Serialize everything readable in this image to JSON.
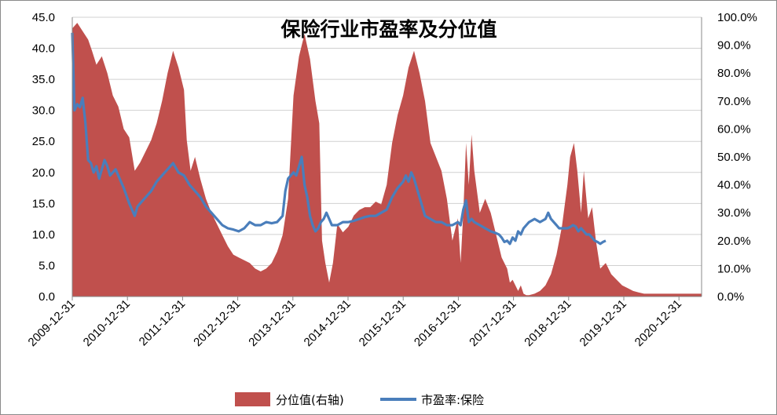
{
  "chart_data": {
    "type": "area",
    "title": "保险行业市盈率及分位值",
    "x_tick_labels": [
      "2009-12-31",
      "2010-12-31",
      "2011-12-31",
      "2012-12-31",
      "2013-12-31",
      "2014-12-31",
      "2015-12-31",
      "2016-12-31",
      "2017-12-31",
      "2018-12-31",
      "2019-12-31",
      "2020-12-31"
    ],
    "left_axis": {
      "range": [
        0,
        45
      ],
      "ticks": [
        "0.0",
        "5.0",
        "10.0",
        "15.0",
        "20.0",
        "25.0",
        "30.0",
        "35.0",
        "40.0",
        "45.0"
      ]
    },
    "right_axis": {
      "range": [
        0,
        100
      ],
      "ticks": [
        "0.0%",
        "10.0%",
        "20.0%",
        "30.0%",
        "40.0%",
        "50.0%",
        "60.0%",
        "70.0%",
        "80.0%",
        "90.0%",
        "100.0%"
      ]
    },
    "x_range": [
      2009.96,
      2021.45
    ],
    "legend_position": "bottom",
    "series": [
      {
        "name": "分位值(右轴)",
        "kind": "area",
        "axis": "right",
        "color": "#c0504d",
        "points": [
          [
            2009.96,
            96
          ],
          [
            2010.05,
            98
          ],
          [
            2010.15,
            95
          ],
          [
            2010.25,
            92
          ],
          [
            2010.32,
            88
          ],
          [
            2010.4,
            83
          ],
          [
            2010.5,
            86
          ],
          [
            2010.6,
            80
          ],
          [
            2010.7,
            72
          ],
          [
            2010.8,
            68
          ],
          [
            2010.9,
            60
          ],
          [
            2011.0,
            57
          ],
          [
            2011.1,
            45
          ],
          [
            2011.2,
            48
          ],
          [
            2011.3,
            52
          ],
          [
            2011.4,
            56
          ],
          [
            2011.5,
            62
          ],
          [
            2011.6,
            70
          ],
          [
            2011.7,
            80
          ],
          [
            2011.8,
            88
          ],
          [
            2011.9,
            82
          ],
          [
            2012.0,
            74
          ],
          [
            2012.05,
            56
          ],
          [
            2012.12,
            45
          ],
          [
            2012.2,
            50
          ],
          [
            2012.3,
            42
          ],
          [
            2012.4,
            35
          ],
          [
            2012.5,
            30
          ],
          [
            2012.6,
            26
          ],
          [
            2012.7,
            22
          ],
          [
            2012.8,
            18
          ],
          [
            2012.9,
            15
          ],
          [
            2013.0,
            14
          ],
          [
            2013.1,
            13
          ],
          [
            2013.2,
            12
          ],
          [
            2013.3,
            10
          ],
          [
            2013.4,
            9
          ],
          [
            2013.5,
            10
          ],
          [
            2013.6,
            12
          ],
          [
            2013.7,
            16
          ],
          [
            2013.8,
            22
          ],
          [
            2013.9,
            35
          ],
          [
            2014.0,
            72
          ],
          [
            2014.1,
            86
          ],
          [
            2014.2,
            94
          ],
          [
            2014.3,
            85
          ],
          [
            2014.4,
            70
          ],
          [
            2014.47,
            62
          ],
          [
            2014.52,
            20
          ],
          [
            2014.58,
            12
          ],
          [
            2014.65,
            5
          ],
          [
            2014.72,
            12
          ],
          [
            2014.8,
            26
          ],
          [
            2014.9,
            23
          ],
          [
            2015.0,
            25
          ],
          [
            2015.1,
            29
          ],
          [
            2015.2,
            31
          ],
          [
            2015.3,
            32
          ],
          [
            2015.4,
            32
          ],
          [
            2015.5,
            34
          ],
          [
            2015.6,
            33
          ],
          [
            2015.7,
            40
          ],
          [
            2015.8,
            55
          ],
          [
            2015.9,
            65
          ],
          [
            2016.0,
            72
          ],
          [
            2016.1,
            82
          ],
          [
            2016.2,
            88
          ],
          [
            2016.3,
            80
          ],
          [
            2016.4,
            70
          ],
          [
            2016.5,
            55
          ],
          [
            2016.6,
            50
          ],
          [
            2016.7,
            45
          ],
          [
            2016.8,
            35
          ],
          [
            2016.9,
            20
          ],
          [
            2017.0,
            28
          ],
          [
            2017.05,
            12
          ],
          [
            2017.1,
            30
          ],
          [
            2017.15,
            55
          ],
          [
            2017.2,
            40
          ],
          [
            2017.25,
            58
          ],
          [
            2017.3,
            45
          ],
          [
            2017.4,
            30
          ],
          [
            2017.5,
            35
          ],
          [
            2017.6,
            30
          ],
          [
            2017.7,
            22
          ],
          [
            2017.8,
            14
          ],
          [
            2017.9,
            10
          ],
          [
            2017.95,
            5
          ],
          [
            2018.0,
            6
          ],
          [
            2018.05,
            4
          ],
          [
            2018.1,
            2
          ],
          [
            2018.15,
            4
          ],
          [
            2018.2,
            1
          ],
          [
            2018.25,
            0.5
          ],
          [
            2018.3,
            0.5
          ],
          [
            2018.4,
            1
          ],
          [
            2018.5,
            2
          ],
          [
            2018.6,
            4
          ],
          [
            2018.7,
            8
          ],
          [
            2018.8,
            15
          ],
          [
            2018.9,
            25
          ],
          [
            2019.0,
            40
          ],
          [
            2019.05,
            50
          ],
          [
            2019.12,
            55
          ],
          [
            2019.18,
            45
          ],
          [
            2019.25,
            30
          ],
          [
            2019.3,
            45
          ],
          [
            2019.38,
            28
          ],
          [
            2019.45,
            32
          ],
          [
            2019.52,
            20
          ],
          [
            2019.6,
            10
          ],
          [
            2019.7,
            12
          ],
          [
            2019.8,
            8
          ],
          [
            2019.9,
            6
          ],
          [
            2020.0,
            4
          ],
          [
            2020.1,
            3
          ],
          [
            2020.2,
            2
          ],
          [
            2020.3,
            1.5
          ],
          [
            2020.4,
            1
          ],
          [
            2021.0,
            1
          ],
          [
            2021.1,
            1
          ],
          [
            2021.2,
            1
          ],
          [
            2021.3,
            1
          ],
          [
            2021.4,
            1
          ],
          [
            2021.45,
            1
          ]
        ]
      },
      {
        "name": "市盈率:保险",
        "kind": "line",
        "axis": "left",
        "color": "#4a7ebb",
        "points": [
          [
            2009.96,
            42.5
          ],
          [
            2010.0,
            30.0
          ],
          [
            2010.05,
            31.0
          ],
          [
            2010.1,
            30.5
          ],
          [
            2010.15,
            32.0
          ],
          [
            2010.2,
            28.0
          ],
          [
            2010.25,
            22.0
          ],
          [
            2010.3,
            21.5
          ],
          [
            2010.35,
            20.0
          ],
          [
            2010.4,
            21.0
          ],
          [
            2010.45,
            19.0
          ],
          [
            2010.5,
            20.5
          ],
          [
            2010.55,
            22.0
          ],
          [
            2010.6,
            21.0
          ],
          [
            2010.65,
            19.5
          ],
          [
            2010.7,
            20.0
          ],
          [
            2010.75,
            20.5
          ],
          [
            2010.8,
            19.5
          ],
          [
            2010.85,
            18.5
          ],
          [
            2010.9,
            17.5
          ],
          [
            2011.0,
            15.0
          ],
          [
            2011.05,
            14.0
          ],
          [
            2011.1,
            13.0
          ],
          [
            2011.15,
            14.5
          ],
          [
            2011.2,
            15.0
          ],
          [
            2011.3,
            16.0
          ],
          [
            2011.4,
            17.0
          ],
          [
            2011.5,
            18.5
          ],
          [
            2011.6,
            19.5
          ],
          [
            2011.7,
            20.5
          ],
          [
            2011.8,
            21.5
          ],
          [
            2011.9,
            20.0
          ],
          [
            2012.0,
            19.5
          ],
          [
            2012.1,
            18.0
          ],
          [
            2012.2,
            17.0
          ],
          [
            2012.3,
            16.0
          ],
          [
            2012.4,
            14.5
          ],
          [
            2012.5,
            13.5
          ],
          [
            2012.6,
            12.5
          ],
          [
            2012.7,
            11.5
          ],
          [
            2012.8,
            11.0
          ],
          [
            2012.9,
            10.8
          ],
          [
            2013.0,
            10.5
          ],
          [
            2013.1,
            11.0
          ],
          [
            2013.2,
            12.0
          ],
          [
            2013.3,
            11.5
          ],
          [
            2013.4,
            11.5
          ],
          [
            2013.5,
            12.0
          ],
          [
            2013.6,
            11.8
          ],
          [
            2013.7,
            12.0
          ],
          [
            2013.8,
            13.0
          ],
          [
            2013.85,
            17.0
          ],
          [
            2013.9,
            19.0
          ],
          [
            2014.0,
            20.0
          ],
          [
            2014.05,
            19.5
          ],
          [
            2014.1,
            21.0
          ],
          [
            2014.15,
            22.5
          ],
          [
            2014.2,
            18.0
          ],
          [
            2014.25,
            16.0
          ],
          [
            2014.3,
            13.0
          ],
          [
            2014.35,
            11.5
          ],
          [
            2014.4,
            10.5
          ],
          [
            2014.45,
            11.0
          ],
          [
            2014.5,
            12.0
          ],
          [
            2014.55,
            12.5
          ],
          [
            2014.6,
            13.5
          ],
          [
            2014.65,
            12.5
          ],
          [
            2014.7,
            11.5
          ],
          [
            2014.8,
            11.5
          ],
          [
            2014.9,
            12.0
          ],
          [
            2015.0,
            12.0
          ],
          [
            2015.1,
            12.2
          ],
          [
            2015.2,
            12.5
          ],
          [
            2015.3,
            12.8
          ],
          [
            2015.4,
            13.0
          ],
          [
            2015.5,
            13.0
          ],
          [
            2015.6,
            13.5
          ],
          [
            2015.7,
            14.0
          ],
          [
            2015.8,
            16.0
          ],
          [
            2015.9,
            17.5
          ],
          [
            2016.0,
            18.5
          ],
          [
            2016.05,
            19.5
          ],
          [
            2016.1,
            18.5
          ],
          [
            2016.15,
            20.0
          ],
          [
            2016.2,
            19.0
          ],
          [
            2016.25,
            17.5
          ],
          [
            2016.3,
            16.0
          ],
          [
            2016.4,
            13.0
          ],
          [
            2016.5,
            12.5
          ],
          [
            2016.6,
            12.0
          ],
          [
            2016.7,
            12.0
          ],
          [
            2016.8,
            11.5
          ],
          [
            2016.9,
            11.5
          ],
          [
            2017.0,
            12.0
          ],
          [
            2017.05,
            11.5
          ],
          [
            2017.1,
            14.0
          ],
          [
            2017.15,
            15.5
          ],
          [
            2017.2,
            12.0
          ],
          [
            2017.25,
            12.5
          ],
          [
            2017.3,
            12.0
          ],
          [
            2017.4,
            11.5
          ],
          [
            2017.5,
            11.0
          ],
          [
            2017.6,
            10.5
          ],
          [
            2017.7,
            10.2
          ],
          [
            2017.75,
            10.0
          ],
          [
            2017.8,
            9.5
          ],
          [
            2017.85,
            8.8
          ],
          [
            2017.9,
            9.0
          ],
          [
            2017.95,
            8.5
          ],
          [
            2018.0,
            9.5
          ],
          [
            2018.05,
            9.0
          ],
          [
            2018.1,
            10.5
          ],
          [
            2018.15,
            10.0
          ],
          [
            2018.2,
            11.0
          ],
          [
            2018.25,
            11.5
          ],
          [
            2018.3,
            12.0
          ],
          [
            2018.4,
            12.5
          ],
          [
            2018.5,
            12.0
          ],
          [
            2018.6,
            12.5
          ],
          [
            2018.65,
            13.5
          ],
          [
            2018.7,
            12.5
          ],
          [
            2018.75,
            12.0
          ],
          [
            2018.8,
            11.5
          ],
          [
            2018.85,
            11.0
          ],
          [
            2018.9,
            11.0
          ],
          [
            2019.0,
            11.0
          ],
          [
            2019.05,
            11.2
          ],
          [
            2019.1,
            11.5
          ],
          [
            2019.15,
            11.3
          ],
          [
            2019.2,
            10.5
          ],
          [
            2019.25,
            11.0
          ],
          [
            2019.3,
            10.5
          ],
          [
            2019.35,
            10.0
          ],
          [
            2019.4,
            10.0
          ],
          [
            2019.45,
            9.5
          ],
          [
            2019.5,
            9.0
          ],
          [
            2019.55,
            8.8
          ],
          [
            2019.6,
            8.5
          ],
          [
            2019.65,
            8.8
          ],
          [
            2019.7,
            9.0
          ]
        ]
      }
    ]
  }
}
